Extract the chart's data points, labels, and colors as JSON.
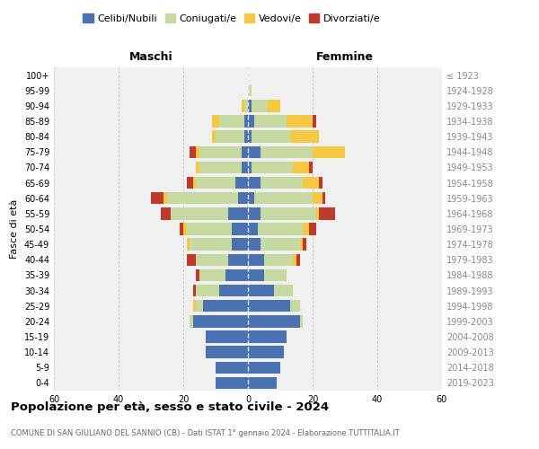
{
  "age_groups": [
    "0-4",
    "5-9",
    "10-14",
    "15-19",
    "20-24",
    "25-29",
    "30-34",
    "35-39",
    "40-44",
    "45-49",
    "50-54",
    "55-59",
    "60-64",
    "65-69",
    "70-74",
    "75-79",
    "80-84",
    "85-89",
    "90-94",
    "95-99",
    "100+"
  ],
  "birth_years": [
    "2019-2023",
    "2014-2018",
    "2009-2013",
    "2004-2008",
    "1999-2003",
    "1994-1998",
    "1989-1993",
    "1984-1988",
    "1979-1983",
    "1974-1978",
    "1969-1973",
    "1964-1968",
    "1959-1963",
    "1954-1958",
    "1949-1953",
    "1944-1948",
    "1939-1943",
    "1934-1938",
    "1929-1933",
    "1924-1928",
    "≤ 1923"
  ],
  "colors": {
    "celibi": "#4a72b0",
    "coniugati": "#c5d9a0",
    "vedovi": "#f5c842",
    "divorziati": "#c0392b"
  },
  "males": {
    "celibi": [
      10,
      10,
      13,
      13,
      17,
      14,
      9,
      7,
      6,
      5,
      5,
      6,
      3,
      4,
      2,
      2,
      1,
      1,
      0,
      0,
      0
    ],
    "coniugati": [
      0,
      0,
      0,
      0,
      1,
      2,
      7,
      8,
      10,
      13,
      14,
      18,
      22,
      12,
      13,
      13,
      9,
      8,
      1,
      0,
      0
    ],
    "vedovi": [
      0,
      0,
      0,
      0,
      0,
      1,
      0,
      0,
      0,
      1,
      1,
      0,
      1,
      1,
      1,
      1,
      1,
      2,
      1,
      0,
      0
    ],
    "divorziati": [
      0,
      0,
      0,
      0,
      0,
      0,
      1,
      1,
      3,
      0,
      1,
      3,
      4,
      2,
      0,
      2,
      0,
      0,
      0,
      0,
      0
    ]
  },
  "females": {
    "celibi": [
      9,
      10,
      11,
      12,
      16,
      13,
      8,
      5,
      5,
      4,
      3,
      4,
      2,
      4,
      1,
      4,
      1,
      2,
      1,
      0,
      0
    ],
    "coniugati": [
      0,
      0,
      0,
      0,
      1,
      3,
      6,
      7,
      9,
      12,
      14,
      17,
      18,
      13,
      13,
      16,
      12,
      10,
      5,
      1,
      0
    ],
    "vedovi": [
      0,
      0,
      0,
      0,
      0,
      0,
      0,
      0,
      1,
      1,
      2,
      1,
      3,
      5,
      5,
      10,
      9,
      8,
      4,
      0,
      0
    ],
    "divorziati": [
      0,
      0,
      0,
      0,
      0,
      0,
      0,
      0,
      1,
      1,
      2,
      5,
      1,
      1,
      1,
      0,
      0,
      1,
      0,
      0,
      0
    ]
  },
  "xlim": 60,
  "title": "Popolazione per età, sesso e stato civile - 2024",
  "subtitle": "COMUNE DI SAN GIULIANO DEL SANNIO (CB) - Dati ISTAT 1° gennaio 2024 - Elaborazione TUTTITALIA.IT",
  "legend_labels": [
    "Celibi/Nubili",
    "Coniugati/e",
    "Vedovi/e",
    "Divorziati/e"
  ],
  "xlabel_left": "Maschi",
  "xlabel_right": "Femmine",
  "ylabel_left": "Fasce di età",
  "bg_color": "#f0f0f0",
  "grid_color": "#cccccc"
}
